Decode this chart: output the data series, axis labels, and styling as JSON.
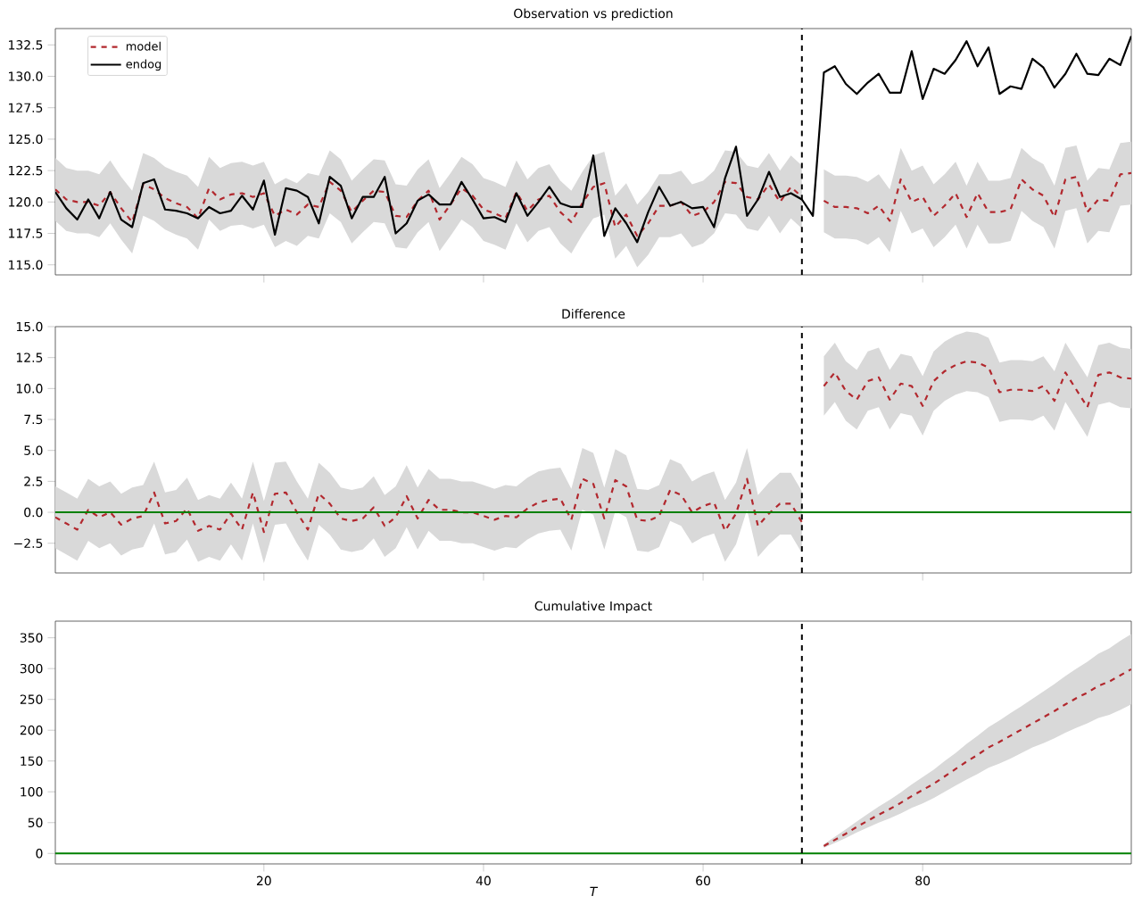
{
  "chart_data": [
    {
      "type": "line",
      "title": "Observation vs prediction",
      "legend": "top left",
      "tick_labels": "y",
      "x": [
        1,
        2,
        3,
        4,
        5,
        6,
        7,
        8,
        9,
        10,
        11,
        12,
        13,
        14,
        15,
        16,
        17,
        18,
        19,
        20,
        21,
        22,
        23,
        24,
        25,
        26,
        27,
        28,
        29,
        30,
        31,
        32,
        33,
        34,
        35,
        36,
        37,
        38,
        39,
        40,
        41,
        42,
        43,
        44,
        45,
        46,
        47,
        48,
        49,
        50,
        51,
        52,
        53,
        54,
        55,
        56,
        57,
        58,
        59,
        60,
        61,
        62,
        63,
        64,
        65,
        66,
        67,
        68,
        69,
        70,
        71,
        72,
        73,
        74,
        75,
        76,
        77,
        78,
        79,
        80,
        81,
        82,
        83,
        84,
        85,
        86,
        87,
        88,
        89,
        90,
        91,
        92,
        93,
        94,
        95,
        96,
        97,
        98,
        99
      ],
      "xlim": [
        1,
        99
      ],
      "xticks": [
        20,
        40,
        60,
        80
      ],
      "ylim": [
        114.2,
        133.8
      ],
      "yticks": [
        {
          "value": 115,
          "label": "115.0"
        },
        {
          "value": 117.5,
          "label": "117.5"
        },
        {
          "value": 120,
          "label": "120.0"
        },
        {
          "value": 122.5,
          "label": "122.5"
        },
        {
          "value": 125,
          "label": "125.0"
        },
        {
          "value": 127.5,
          "label": "127.5"
        },
        {
          "value": 130,
          "label": "130.0"
        },
        {
          "value": 132.5,
          "label": "132.5"
        }
      ],
      "ref_lines": [
        {
          "axis": "x",
          "value": 69,
          "color": "#000000",
          "line_style": "dashed"
        }
      ],
      "series": [
        {
          "name": "model",
          "color": "#b2282e",
          "line_style": "dashed",
          "values": [
            121.0,
            120.2,
            120.0,
            120.0,
            119.7,
            120.8,
            119.5,
            118.4,
            121.4,
            121.0,
            120.3,
            119.9,
            119.6,
            118.7,
            121.1,
            120.2,
            120.6,
            120.7,
            120.4,
            120.7,
            118.9,
            119.4,
            119.0,
            119.8,
            119.6,
            121.6,
            120.9,
            119.2,
            120.1,
            120.9,
            120.8,
            118.9,
            118.8,
            120.1,
            120.9,
            118.6,
            119.8,
            121.1,
            120.5,
            119.4,
            119.1,
            118.7,
            120.8,
            119.3,
            120.2,
            120.5,
            119.2,
            118.4,
            119.9,
            121.2,
            121.5,
            118.0,
            119.0,
            117.3,
            118.3,
            119.7,
            119.7,
            120.0,
            118.9,
            119.2,
            120.0,
            121.6,
            121.5,
            120.4,
            120.2,
            121.4,
            120.0,
            121.2,
            120.4,
            null,
            120.1,
            119.6,
            119.6,
            119.5,
            119.1,
            119.7,
            118.5,
            121.8,
            120.0,
            120.4,
            118.9,
            119.7,
            120.7,
            118.8,
            120.7,
            119.2,
            119.2,
            119.4,
            121.8,
            121.0,
            120.5,
            118.8,
            121.8,
            122.0,
            119.2,
            120.2,
            120.1,
            122.2,
            122.3
          ],
          "lower": [
            118.5,
            117.7,
            117.5,
            117.5,
            117.2,
            118.3,
            117.0,
            115.9,
            118.9,
            118.5,
            117.8,
            117.4,
            117.1,
            116.2,
            118.6,
            117.7,
            118.1,
            118.2,
            117.9,
            118.2,
            116.4,
            116.9,
            116.5,
            117.3,
            117.1,
            119.1,
            118.4,
            116.7,
            117.6,
            118.4,
            118.3,
            116.4,
            116.3,
            117.6,
            118.4,
            116.1,
            117.3,
            118.6,
            118.0,
            116.9,
            116.6,
            116.2,
            118.3,
            116.8,
            117.7,
            118.0,
            116.7,
            115.9,
            117.4,
            118.7,
            119.0,
            115.5,
            116.5,
            114.8,
            115.8,
            117.2,
            117.2,
            117.5,
            116.4,
            116.7,
            117.5,
            119.1,
            119.0,
            117.9,
            117.7,
            118.9,
            117.5,
            118.7,
            117.9,
            null,
            117.6,
            117.1,
            117.1,
            117.0,
            116.6,
            117.2,
            116.0,
            119.3,
            117.5,
            117.9,
            116.4,
            117.2,
            118.2,
            116.3,
            118.2,
            116.7,
            116.7,
            116.9,
            119.3,
            118.5,
            118.0,
            116.3,
            119.3,
            119.5,
            116.7,
            117.7,
            117.6,
            119.7,
            119.8
          ],
          "upper": [
            123.5,
            122.7,
            122.5,
            122.5,
            122.2,
            123.3,
            122.0,
            120.9,
            123.9,
            123.5,
            122.8,
            122.4,
            122.1,
            121.2,
            123.6,
            122.7,
            123.1,
            123.2,
            122.9,
            123.2,
            121.4,
            121.9,
            121.5,
            122.3,
            122.1,
            124.1,
            123.4,
            121.7,
            122.6,
            123.4,
            123.3,
            121.4,
            121.3,
            122.6,
            123.4,
            121.1,
            122.3,
            123.6,
            123.0,
            121.9,
            121.6,
            121.2,
            123.3,
            121.8,
            122.7,
            123.0,
            121.7,
            120.9,
            122.4,
            123.7,
            124.0,
            120.5,
            121.5,
            119.8,
            120.8,
            122.2,
            122.2,
            122.5,
            121.4,
            121.7,
            122.5,
            124.1,
            124.0,
            122.9,
            122.7,
            123.9,
            122.5,
            123.7,
            122.9,
            null,
            122.6,
            122.1,
            122.1,
            122.0,
            121.6,
            122.2,
            121.0,
            124.3,
            122.5,
            122.9,
            121.4,
            122.2,
            123.2,
            121.3,
            123.2,
            121.7,
            121.7,
            121.9,
            124.3,
            123.5,
            123.0,
            121.3,
            124.3,
            124.5,
            121.7,
            122.7,
            122.6,
            124.7,
            124.8
          ]
        },
        {
          "name": "endog",
          "color": "#000000",
          "line_style": "solid",
          "values": [
            120.8,
            119.5,
            118.6,
            120.2,
            118.7,
            120.8,
            118.6,
            118.0,
            121.5,
            121.8,
            119.4,
            119.3,
            119.1,
            118.7,
            119.6,
            119.1,
            119.3,
            120.5,
            119.4,
            121.7,
            117.4,
            121.1,
            120.9,
            120.4,
            118.3,
            122.0,
            121.3,
            118.7,
            120.4,
            120.4,
            122.0,
            117.5,
            118.3,
            120.1,
            120.6,
            119.8,
            119.8,
            121.6,
            120.2,
            118.7,
            118.8,
            118.4,
            120.7,
            118.9,
            120.0,
            121.2,
            119.9,
            119.6,
            119.6,
            123.7,
            117.3,
            119.5,
            118.3,
            116.8,
            119.2,
            121.2,
            119.7,
            120.0,
            119.5,
            119.6,
            118.0,
            121.9,
            124.4,
            118.9,
            120.2,
            122.4,
            120.4,
            120.7,
            120.2,
            118.9,
            130.3,
            130.8,
            129.4,
            128.6,
            129.5,
            130.2,
            128.7,
            128.7,
            132.0,
            128.2,
            130.6,
            130.2,
            131.3,
            132.8,
            130.8,
            132.3,
            128.6,
            129.2,
            129.0,
            131.4,
            130.7,
            129.1,
            130.2,
            131.8,
            130.2,
            130.1,
            131.4,
            130.9,
            133.2
          ]
        }
      ]
    },
    {
      "type": "line",
      "title": "Difference",
      "tick_labels": "y",
      "x": [
        1,
        2,
        3,
        4,
        5,
        6,
        7,
        8,
        9,
        10,
        11,
        12,
        13,
        14,
        15,
        16,
        17,
        18,
        19,
        20,
        21,
        22,
        23,
        24,
        25,
        26,
        27,
        28,
        29,
        30,
        31,
        32,
        33,
        34,
        35,
        36,
        37,
        38,
        39,
        40,
        41,
        42,
        43,
        44,
        45,
        46,
        47,
        48,
        49,
        50,
        51,
        52,
        53,
        54,
        55,
        56,
        57,
        58,
        59,
        60,
        61,
        62,
        63,
        64,
        65,
        66,
        67,
        68,
        69,
        70,
        71,
        72,
        73,
        74,
        75,
        76,
        77,
        78,
        79,
        80,
        81,
        82,
        83,
        84,
        85,
        86,
        87,
        88,
        89,
        90,
        91,
        92,
        93,
        94,
        95,
        96,
        97,
        98,
        99
      ],
      "xlim": [
        1,
        99
      ],
      "xticks": [
        20,
        40,
        60,
        80
      ],
      "ylim": [
        -4.9,
        15
      ],
      "yticks": [
        {
          "value": -2.5,
          "label": "−2.5"
        },
        {
          "value": 0,
          "label": "0.0"
        },
        {
          "value": 2.5,
          "label": "2.5"
        },
        {
          "value": 5,
          "label": "5.0"
        },
        {
          "value": 7.5,
          "label": "7.5"
        },
        {
          "value": 10,
          "label": "10.0"
        },
        {
          "value": 12.5,
          "label": "12.5"
        },
        {
          "value": 15,
          "label": "15.0"
        }
      ],
      "ref_lines": [
        {
          "axis": "y",
          "value": 0,
          "color": "#008000",
          "line_style": "solid"
        },
        {
          "axis": "x",
          "value": 69,
          "color": "#000000",
          "line_style": "dashed"
        }
      ],
      "series": [
        {
          "color": "#b2282e",
          "line_style": "dashed",
          "values": [
            -0.4,
            -0.9,
            -1.4,
            0.2,
            -0.4,
            0,
            -1.0,
            -0.5,
            -0.3,
            1.6,
            -0.9,
            -0.7,
            0.3,
            -1.5,
            -1.1,
            -1.4,
            -0.1,
            -1.4,
            1.6,
            -1.6,
            1.5,
            1.6,
            0,
            -1.4,
            1.5,
            0.7,
            -0.5,
            -0.7,
            -0.5,
            0.4,
            -1.1,
            -0.4,
            1.3,
            -0.5,
            1.0,
            0.2,
            0.2,
            0,
            0,
            -0.3,
            -0.6,
            -0.3,
            -0.4,
            0.3,
            0.8,
            1.0,
            1.1,
            -0.6,
            2.7,
            2.3,
            -0.5,
            2.6,
            2.1,
            -0.6,
            -0.7,
            -0.3,
            1.8,
            1.4,
            0,
            0.5,
            0.8,
            -1.5,
            -0.1,
            2.7,
            -1.1,
            -0.1,
            0.7,
            0.7,
            -0.8,
            null,
            10.2,
            11.3,
            9.8,
            9.1,
            10.6,
            10.9,
            9.1,
            10.4,
            10.2,
            8.6,
            10.6,
            11.4,
            11.9,
            12.2,
            12.1,
            11.7,
            9.7,
            9.9,
            9.9,
            9.8,
            10.2,
            9.0,
            11.3,
            9.9,
            8.5,
            11.1,
            11.3,
            10.9,
            10.8
          ],
          "lower": [
            -2.9,
            -3.4,
            -3.9,
            -2.3,
            -2.9,
            -2.5,
            -3.5,
            -3.0,
            -2.8,
            -0.9,
            -3.4,
            -3.2,
            -2.2,
            -4.0,
            -3.6,
            -3.9,
            -2.6,
            -3.9,
            -0.9,
            -4.1,
            -1.0,
            -0.9,
            -2.5,
            -3.9,
            -1.0,
            -1.8,
            -3.0,
            -3.2,
            -3.0,
            -2.1,
            -3.6,
            -2.9,
            -1.2,
            -3.0,
            -1.5,
            -2.3,
            -2.3,
            -2.5,
            -2.5,
            -2.8,
            -3.1,
            -2.8,
            -2.9,
            -2.2,
            -1.7,
            -1.5,
            -1.4,
            -3.1,
            0.2,
            -0.2,
            -3.0,
            0.1,
            -0.4,
            -3.1,
            -3.2,
            -2.8,
            -0.7,
            -1.1,
            -2.5,
            -2.0,
            -1.7,
            -4.0,
            -2.6,
            0.2,
            -3.6,
            -2.6,
            -1.8,
            -1.8,
            -3.3,
            null,
            7.8,
            8.9,
            7.4,
            6.7,
            8.2,
            8.5,
            6.7,
            8.0,
            7.8,
            6.2,
            8.2,
            9.0,
            9.5,
            9.8,
            9.7,
            9.3,
            7.3,
            7.5,
            7.5,
            7.4,
            7.8,
            6.6,
            8.9,
            7.5,
            6.1,
            8.7,
            8.9,
            8.5,
            8.4
          ],
          "upper": [
            2.1,
            1.6,
            1.1,
            2.7,
            2.1,
            2.5,
            1.5,
            2.0,
            2.2,
            4.1,
            1.6,
            1.8,
            2.8,
            1.0,
            1.4,
            1.1,
            2.4,
            1.1,
            4.1,
            0.9,
            4.0,
            4.1,
            2.5,
            1.1,
            4.0,
            3.2,
            2.0,
            1.8,
            2.0,
            2.9,
            1.4,
            2.1,
            3.8,
            2.0,
            3.5,
            2.7,
            2.7,
            2.5,
            2.5,
            2.2,
            1.9,
            2.2,
            2.1,
            2.8,
            3.3,
            3.5,
            3.6,
            1.9,
            5.2,
            4.8,
            2.0,
            5.1,
            4.6,
            1.9,
            1.8,
            2.2,
            4.3,
            3.9,
            2.5,
            3.0,
            3.3,
            1.0,
            2.4,
            5.2,
            1.4,
            2.4,
            3.2,
            3.2,
            1.7,
            null,
            12.6,
            13.7,
            12.2,
            11.5,
            13.0,
            13.3,
            11.5,
            12.8,
            12.6,
            11.0,
            13.0,
            13.8,
            14.3,
            14.6,
            14.5,
            14.1,
            12.1,
            12.3,
            12.3,
            12.2,
            12.6,
            11.4,
            13.7,
            12.3,
            10.9,
            13.5,
            13.7,
            13.3,
            13.2
          ]
        }
      ]
    },
    {
      "type": "line",
      "title": "Cumulative Impact",
      "xlabel": "T",
      "xlim": [
        1,
        99
      ],
      "xticks": [
        20,
        40,
        60,
        80
      ],
      "ylim": [
        -17,
        377
      ],
      "yticks": [
        0,
        50,
        100,
        150,
        200,
        250,
        300,
        350
      ],
      "ref_lines": [
        {
          "axis": "y",
          "value": 0,
          "color": "#008000",
          "line_style": "solid"
        },
        {
          "axis": "x",
          "value": 69,
          "color": "#000000",
          "line_style": "dashed"
        }
      ],
      "series": [
        {
          "color": "#b2282e",
          "line_style": "dashed",
          "x": [
            71,
            72,
            73,
            74,
            75,
            76,
            77,
            78,
            79,
            80,
            81,
            82,
            83,
            84,
            85,
            86,
            87,
            88,
            89,
            90,
            91,
            92,
            93,
            94,
            95,
            96,
            97,
            98,
            99
          ],
          "values": [
            12,
            22,
            32,
            43,
            53,
            63,
            72,
            82,
            93,
            103,
            113,
            125,
            137,
            149,
            160,
            172,
            181,
            191,
            201,
            211,
            221,
            231,
            242,
            252,
            261,
            272,
            279,
            289,
            299
          ],
          "lower": [
            9,
            17,
            25,
            34,
            42,
            50,
            57,
            65,
            74,
            81,
            90,
            100,
            110,
            120,
            129,
            139,
            146,
            154,
            163,
            172,
            179,
            187,
            196,
            204,
            211,
            220,
            225,
            233,
            242
          ],
          "upper": [
            15,
            27,
            39,
            52,
            64,
            76,
            87,
            99,
            112,
            124,
            136,
            150,
            163,
            178,
            191,
            205,
            216,
            228,
            239,
            251,
            263,
            275,
            288,
            300,
            311,
            324,
            333,
            345,
            356
          ]
        }
      ]
    }
  ]
}
